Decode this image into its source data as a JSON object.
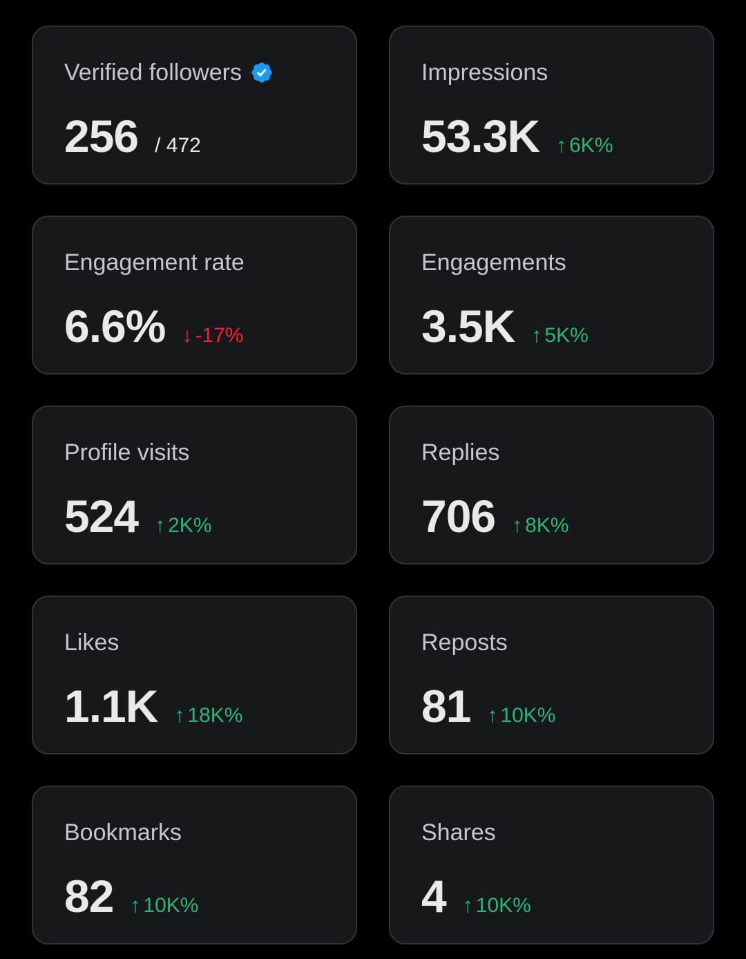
{
  "colors": {
    "background": "#000000",
    "card": "#17181c",
    "card_border": "#2f3336",
    "positive": "#2ab673",
    "negative": "#f4212e",
    "verified": "#1d9bf0"
  },
  "cards": [
    {
      "label": "Verified followers",
      "value": "256",
      "total": "/ 472",
      "verified_icon": "verified-badge-icon"
    },
    {
      "label": "Impressions",
      "value": "53.3K",
      "change": "6K%",
      "direction": "up"
    },
    {
      "label": "Engagement rate",
      "value": "6.6%",
      "change": "-17%",
      "direction": "down"
    },
    {
      "label": "Engagements",
      "value": "3.5K",
      "change": "5K%",
      "direction": "up"
    },
    {
      "label": "Profile visits",
      "value": "524",
      "change": "2K%",
      "direction": "up"
    },
    {
      "label": "Replies",
      "value": "706",
      "change": "8K%",
      "direction": "up"
    },
    {
      "label": "Likes",
      "value": "1.1K",
      "change": "18K%",
      "direction": "up"
    },
    {
      "label": "Reposts",
      "value": "81",
      "change": "10K%",
      "direction": "up"
    },
    {
      "label": "Bookmarks",
      "value": "82",
      "change": "10K%",
      "direction": "up"
    },
    {
      "label": "Shares",
      "value": "4",
      "change": "10K%",
      "direction": "up"
    }
  ]
}
